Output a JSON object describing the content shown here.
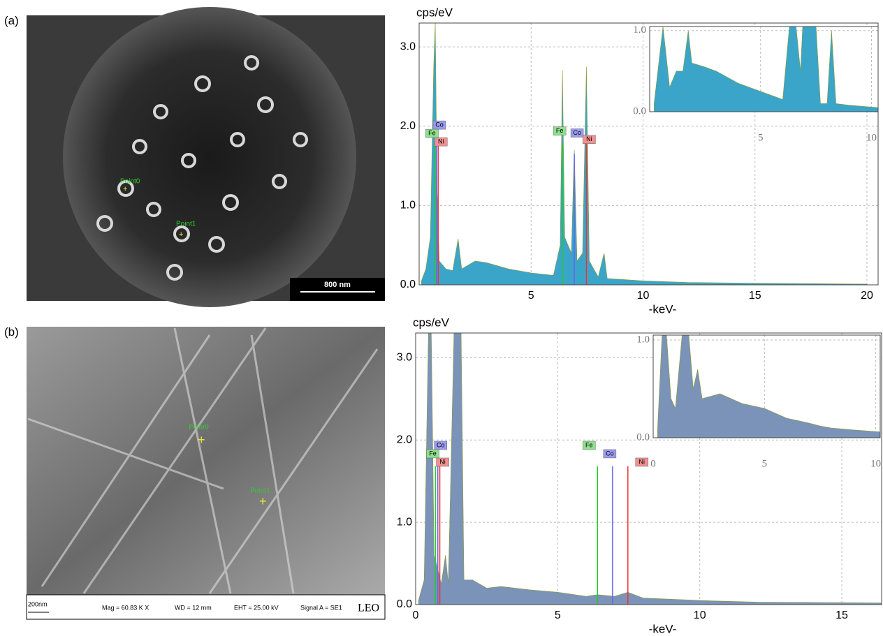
{
  "panels": [
    {
      "label": "(a)",
      "points": [
        "Point0",
        "Point1"
      ],
      "scale_bar": "800 nm"
    },
    {
      "label": "(b)",
      "points": [
        "Point0",
        "Point1"
      ],
      "scale_bar": "200nm",
      "info": [
        "Mag = 60.83 K X",
        "WD =  12 mm",
        "EHT = 25.00 kV",
        "Signal A = SE1",
        "LEO"
      ]
    }
  ],
  "chart_data": [
    {
      "type": "area",
      "y_label": "cps/eV",
      "x_label": "-keV-",
      "color": "#3aa5c9",
      "grid": true,
      "xlim": [
        0,
        20.5
      ],
      "ylim": [
        0,
        3.3
      ],
      "xticks": [
        5,
        10,
        15,
        20
      ],
      "yticks": [
        {
          "value": 0,
          "label": "0.0"
        },
        {
          "value": 1,
          "label": "1.0"
        },
        {
          "value": 2,
          "label": "2.0"
        },
        {
          "value": 3,
          "label": "3.0"
        }
      ],
      "x": [
        0.1,
        0.3,
        0.5,
        0.65,
        0.72,
        0.8,
        0.9,
        1.2,
        1.5,
        1.74,
        1.9,
        2.5,
        3.0,
        4,
        5,
        6,
        6.3,
        6.4,
        6.5,
        6.8,
        6.93,
        7.05,
        7.3,
        7.47,
        7.6,
        8.0,
        8.26,
        8.4,
        10,
        12,
        15,
        20
      ],
      "values": [
        0.05,
        0.2,
        0.6,
        2.75,
        3.3,
        1.2,
        0.3,
        0.2,
        0.18,
        0.58,
        0.2,
        0.3,
        0.28,
        0.2,
        0.15,
        0.12,
        0.5,
        2.7,
        0.6,
        0.4,
        1.7,
        0.3,
        0.4,
        2.75,
        0.3,
        0.1,
        0.4,
        0.08,
        0.05,
        0.03,
        0.02,
        0.01
      ],
      "markers": [
        {
          "label": "Co",
          "x": 0.78,
          "height": 1.75,
          "color": "#6666ee"
        },
        {
          "label": "Fe",
          "x": 0.7,
          "height": 1.75,
          "color": "#22cc22"
        },
        {
          "label": "Ni",
          "x": 0.85,
          "height": 1.75,
          "color": "#ee3333"
        },
        {
          "label": "Co",
          "x": 6.93,
          "height": 1.65,
          "color": "#6666ee"
        },
        {
          "label": "Fe",
          "x": 6.4,
          "height": 1.78,
          "color": "#22cc22"
        },
        {
          "label": "Ni",
          "x": 7.47,
          "height": 1.78,
          "color": "#ee3333"
        }
      ]
    },
    {
      "type": "area",
      "color": "#3aa5c9",
      "grid": true,
      "xlim": [
        0,
        10.3
      ],
      "ylim": [
        0,
        1.05
      ],
      "xticks": [
        5,
        10
      ],
      "yticks": [
        {
          "value": 0,
          "label": "0.0"
        },
        {
          "value": 1,
          "label": "1.0"
        }
      ],
      "x": [
        0.2,
        0.6,
        0.9,
        1.2,
        1.5,
        1.74,
        1.9,
        2.5,
        3,
        4,
        5,
        6,
        6.3,
        6.6,
        6.8,
        6.9,
        7.3,
        7.5,
        7.7,
        8.0,
        8.2,
        8.4,
        9,
        10.3
      ],
      "values": [
        0.1,
        1.05,
        0.3,
        0.5,
        0.5,
        1.0,
        0.6,
        0.55,
        0.5,
        0.35,
        0.25,
        0.15,
        1.05,
        1.05,
        0.5,
        1.05,
        1.05,
        1.05,
        0.1,
        0.1,
        1.0,
        0.1,
        0.08,
        0.05
      ]
    },
    {
      "type": "area",
      "y_label": "cps/eV",
      "x_label": "-keV-",
      "color": "#7b93b8",
      "grid": true,
      "xlim": [
        0,
        16.4
      ],
      "ylim": [
        0,
        3.3
      ],
      "xticks": [
        0,
        5,
        10,
        15
      ],
      "yticks": [
        {
          "value": 0,
          "label": "0.0"
        },
        {
          "value": 1,
          "label": "1.0"
        },
        {
          "value": 2,
          "label": "2.0"
        },
        {
          "value": 3,
          "label": "3.0"
        }
      ],
      "x": [
        0.1,
        0.3,
        0.45,
        0.55,
        0.65,
        0.8,
        0.9,
        1.05,
        1.15,
        1.35,
        1.6,
        1.7,
        2.0,
        2.5,
        3,
        4,
        5,
        6,
        6.4,
        7,
        7.47,
        8,
        10,
        12,
        16.4
      ],
      "values": [
        0.05,
        0.3,
        3.3,
        3.3,
        0.6,
        0.4,
        0.25,
        0.6,
        0.25,
        3.3,
        3.3,
        0.3,
        0.3,
        0.2,
        0.22,
        0.18,
        0.15,
        0.1,
        0.12,
        0.1,
        0.15,
        0.08,
        0.05,
        0.03,
        0.02
      ],
      "markers": [
        {
          "label": "Co",
          "x": 0.78,
          "height": 1.68,
          "color": "#6666ee"
        },
        {
          "label": "Fe",
          "x": 0.7,
          "height": 1.68,
          "color": "#22cc22"
        },
        {
          "label": "Ni",
          "x": 0.85,
          "height": 1.68,
          "color": "#ee3333"
        },
        {
          "label": "Fe",
          "x": 6.4,
          "height": 1.68,
          "color": "#22cc22"
        },
        {
          "label": "Co",
          "x": 6.93,
          "height": 1.68,
          "color": "#6666ee"
        },
        {
          "label": "Ni",
          "x": 7.47,
          "height": 1.68,
          "color": "#ee3333"
        }
      ]
    },
    {
      "type": "area",
      "color": "#7b93b8",
      "grid": true,
      "xlim": [
        0,
        10.2
      ],
      "ylim": [
        0,
        1.05
      ],
      "xticks": [
        0,
        5,
        10
      ],
      "yticks": [
        {
          "value": 0,
          "label": "0.0"
        },
        {
          "value": 1,
          "label": "1.0"
        }
      ],
      "x": [
        0.2,
        0.4,
        0.6,
        0.8,
        1.0,
        1.3,
        1.6,
        1.8,
        2,
        2.2,
        3,
        4,
        5,
        6,
        7,
        7.5,
        8,
        9,
        10.2
      ],
      "values": [
        0.1,
        1.05,
        1.05,
        0.4,
        0.3,
        1.05,
        1.05,
        0.5,
        0.7,
        0.4,
        0.45,
        0.35,
        0.3,
        0.2,
        0.15,
        0.12,
        0.1,
        0.08,
        0.06
      ]
    }
  ]
}
